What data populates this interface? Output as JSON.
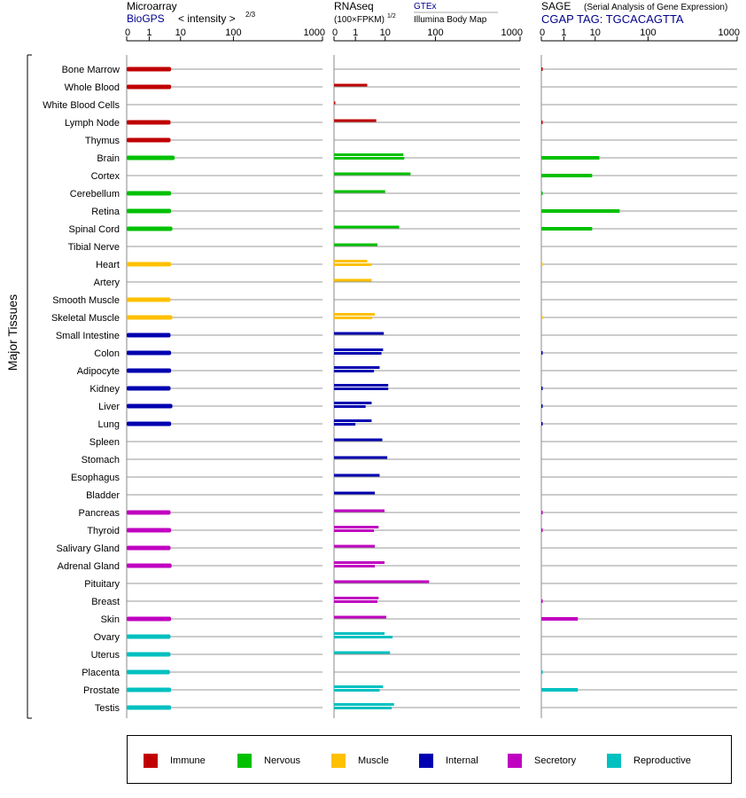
{
  "chart_data": {
    "type": "bar",
    "panels": [
      {
        "key": "microarray",
        "title": "Microarray",
        "link": "BioGPS",
        "subtitle": "< intensity >",
        "subtitle_exp": "2/3",
        "link2": ""
      },
      {
        "key": "rnaseq",
        "title": "RNAseq",
        "subtitle": "(100×FPKM)",
        "subtitle_exp": "1/2",
        "link": "GTEx",
        "link2": "Illumina Body Map"
      },
      {
        "key": "sage",
        "title": "SAGE",
        "subtitle": "(Serial Analysis of Gene Expression)",
        "subtitle_exp": "",
        "link": "CGAP TAG: TGCACAGTTA",
        "link2": ""
      }
    ],
    "x_tick_labels": [
      "0",
      "1",
      "10",
      "100",
      "1000"
    ],
    "x_ticks": [
      0,
      1,
      10,
      100,
      1000
    ],
    "xlim": [
      0,
      1000
    ],
    "ylabel": "Major Tissues",
    "legend": [
      {
        "name": "Immune",
        "color": "#c00000"
      },
      {
        "name": "Nervous",
        "color": "#00c000"
      },
      {
        "name": "Muscle",
        "color": "#ffc000"
      },
      {
        "name": "Internal",
        "color": "#0000b0"
      },
      {
        "name": "Secretory",
        "color": "#c000c0"
      },
      {
        "name": "Reproductive",
        "color": "#00c0c0"
      }
    ],
    "tissues": [
      {
        "name": "Bone Marrow",
        "group": "Immune",
        "microarray": [
          5
        ],
        "rnaseq": [],
        "sage": [
          0.02
        ]
      },
      {
        "name": "Whole Blood",
        "group": "Immune",
        "microarray": [
          5
        ],
        "rnaseq": [
          2.5
        ],
        "sage": []
      },
      {
        "name": "White Blood Cells",
        "group": "Immune",
        "microarray": [],
        "rnaseq": [
          0.02
        ],
        "sage": []
      },
      {
        "name": "Lymph Node",
        "group": "Immune",
        "microarray": [
          4.8
        ],
        "rnaseq": [
          5
        ],
        "sage": [
          0.02
        ]
      },
      {
        "name": "Thymus",
        "group": "Immune",
        "microarray": [
          4.8
        ],
        "rnaseq": [],
        "sage": []
      },
      {
        "name": "Brain",
        "group": "Nervous",
        "microarray": [
          6.5
        ],
        "rnaseq": [
          23,
          24
        ],
        "sage": [
          12
        ]
      },
      {
        "name": "Cortex",
        "group": "Nervous",
        "microarray": [],
        "rnaseq": [
          32
        ],
        "sage": [
          8
        ]
      },
      {
        "name": "Cerebellum",
        "group": "Nervous",
        "microarray": [
          5
        ],
        "rnaseq": [
          10
        ],
        "sage": [
          0.02
        ]
      },
      {
        "name": "Retina",
        "group": "Nervous",
        "microarray": [
          5
        ],
        "rnaseq": [],
        "sage": [
          29
        ]
      },
      {
        "name": "Spinal Cord",
        "group": "Nervous",
        "microarray": [
          5.5
        ],
        "rnaseq": [
          19
        ],
        "sage": [
          8
        ]
      },
      {
        "name": "Tibial Nerve",
        "group": "Nervous",
        "microarray": [],
        "rnaseq": [
          5.5
        ],
        "sage": []
      },
      {
        "name": "Heart",
        "group": "Muscle",
        "microarray": [
          5
        ],
        "rnaseq": [
          2.5,
          3.5
        ],
        "sage": [
          0.02
        ]
      },
      {
        "name": "Artery",
        "group": "Muscle",
        "microarray": [],
        "rnaseq": [
          3.5
        ],
        "sage": []
      },
      {
        "name": "Smooth Muscle",
        "group": "Muscle",
        "microarray": [
          4.8
        ],
        "rnaseq": [],
        "sage": []
      },
      {
        "name": "Skeletal Muscle",
        "group": "Muscle",
        "microarray": [
          5.5
        ],
        "rnaseq": [
          4.5,
          3.7
        ],
        "sage": [
          0.02
        ]
      },
      {
        "name": "Small Intestine",
        "group": "Internal",
        "microarray": [
          4.8
        ],
        "rnaseq": [
          9
        ],
        "sage": []
      },
      {
        "name": "Colon",
        "group": "Internal",
        "microarray": [
          5
        ],
        "rnaseq": [
          8.5,
          7.5
        ],
        "sage": [
          0.02
        ]
      },
      {
        "name": "Adipocyte",
        "group": "Internal",
        "microarray": [
          5
        ],
        "rnaseq": [
          6.5,
          4.2
        ],
        "sage": []
      },
      {
        "name": "Kidney",
        "group": "Internal",
        "microarray": [
          4.8
        ],
        "rnaseq": [
          11.5,
          11.5
        ],
        "sage": [
          0.02
        ]
      },
      {
        "name": "Liver",
        "group": "Internal",
        "microarray": [
          5.5
        ],
        "rnaseq": [
          3.5,
          2.2
        ],
        "sage": [
          0.02
        ]
      },
      {
        "name": "Lung",
        "group": "Internal",
        "microarray": [
          5
        ],
        "rnaseq": [
          3.5,
          1
        ],
        "sage": [
          0.02
        ]
      },
      {
        "name": "Spleen",
        "group": "Internal",
        "microarray": [],
        "rnaseq": [
          8
        ],
        "sage": []
      },
      {
        "name": "Stomach",
        "group": "Internal",
        "microarray": [],
        "rnaseq": [
          11
        ],
        "sage": []
      },
      {
        "name": "Esophagus",
        "group": "Internal",
        "microarray": [],
        "rnaseq": [
          6.5
        ],
        "sage": []
      },
      {
        "name": "Bladder",
        "group": "Internal",
        "microarray": [],
        "rnaseq": [
          4.5
        ],
        "sage": []
      },
      {
        "name": "Pancreas",
        "group": "Secretory",
        "microarray": [
          4.8
        ],
        "rnaseq": [
          9.5
        ],
        "sage": [
          0.02
        ]
      },
      {
        "name": "Thyroid",
        "group": "Secretory",
        "microarray": [
          5
        ],
        "rnaseq": [
          6,
          4.2
        ],
        "sage": [
          0.02
        ]
      },
      {
        "name": "Salivary Gland",
        "group": "Secretory",
        "microarray": [
          4.8
        ],
        "rnaseq": [
          4.5
        ],
        "sage": []
      },
      {
        "name": "Adrenal Gland",
        "group": "Secretory",
        "microarray": [
          5.2
        ],
        "rnaseq": [
          9.5,
          4.5
        ],
        "sage": []
      },
      {
        "name": "Pituitary",
        "group": "Secretory",
        "microarray": [],
        "rnaseq": [
          75
        ],
        "sage": []
      },
      {
        "name": "Breast",
        "group": "Secretory",
        "microarray": [],
        "rnaseq": [
          6,
          5.5
        ],
        "sage": [
          0.02
        ]
      },
      {
        "name": "Skin",
        "group": "Secretory",
        "microarray": [
          5
        ],
        "rnaseq": [
          10.5
        ],
        "sage": [
          2.8
        ]
      },
      {
        "name": "Ovary",
        "group": "Reproductive",
        "microarray": [
          4.8
        ],
        "rnaseq": [
          9.5,
          14
        ],
        "sage": []
      },
      {
        "name": "Uterus",
        "group": "Reproductive",
        "microarray": [
          4.8
        ],
        "rnaseq": [
          12.5
        ],
        "sage": []
      },
      {
        "name": "Placenta",
        "group": "Reproductive",
        "microarray": [
          4.6
        ],
        "rnaseq": [],
        "sage": [
          0.02
        ]
      },
      {
        "name": "Prostate",
        "group": "Reproductive",
        "microarray": [
          5
        ],
        "rnaseq": [
          8.5,
          6.5
        ],
        "sage": [
          2.8
        ]
      },
      {
        "name": "Testis",
        "group": "Reproductive",
        "microarray": [
          5
        ],
        "rnaseq": [
          15,
          13.5
        ],
        "sage": []
      }
    ]
  }
}
